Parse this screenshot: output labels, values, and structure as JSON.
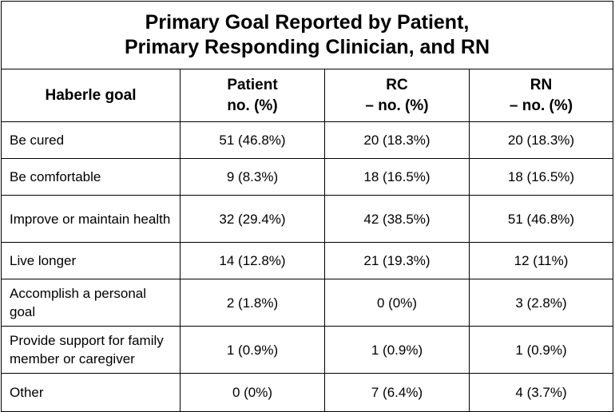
{
  "chart_data": {
    "type": "table",
    "title_lines": [
      "Primary Goal Reported by Patient,",
      "Primary Responding Clinician, and RN"
    ],
    "columns": [
      {
        "lines": [
          "Haberle goal"
        ]
      },
      {
        "lines": [
          "Patient",
          "no. (%)"
        ]
      },
      {
        "lines": [
          "RC",
          "– no. (%)"
        ]
      },
      {
        "lines": [
          "RN",
          "– no. (%)"
        ]
      }
    ],
    "rows": [
      {
        "goal": "Be cured",
        "patient": "51 (46.8%)",
        "rc": "20 (18.3%)",
        "rn": "20 (18.3%)"
      },
      {
        "goal": "Be comfortable",
        "patient": "9 (8.3%)",
        "rc": "18 (16.5%)",
        "rn": "18 (16.5%)"
      },
      {
        "goal": "Improve or maintain health",
        "patient": "32 (29.4%)",
        "rc": "42 (38.5%)",
        "rn": "51 (46.8%)"
      },
      {
        "goal": "Live longer",
        "patient": "14 (12.8%)",
        "rc": "21 (19.3%)",
        "rn": "12 (11%)"
      },
      {
        "goal": "Accomplish a personal goal",
        "patient": "2 (1.8%)",
        "rc": "0 (0%)",
        "rn": "3 (2.8%)"
      },
      {
        "goal": "Provide support for family member or caregiver",
        "patient": "1 (0.9%)",
        "rc": "1 (0.9%)",
        "rn": "1 (0.9%)"
      },
      {
        "goal": "Other",
        "patient": "0 (0%)",
        "rc": "7 (6.4%)",
        "rn": "4 (3.7%)"
      }
    ]
  }
}
